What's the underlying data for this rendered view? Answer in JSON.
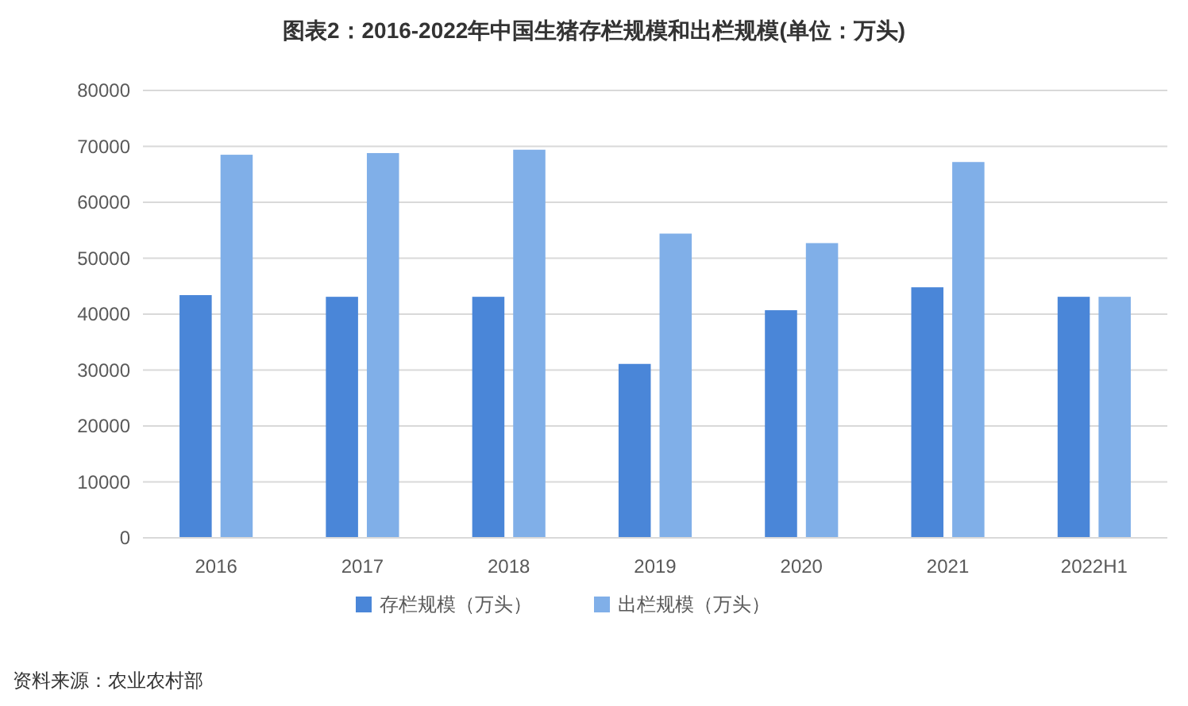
{
  "chart_data": {
    "type": "bar",
    "title": "图表2：2016-2022年中国生猪存栏规模和出栏规模(单位：万头)",
    "categories": [
      "2016",
      "2017",
      "2018",
      "2019",
      "2020",
      "2021",
      "2022H1"
    ],
    "series": [
      {
        "name": "存栏规模（万头）",
        "color": "#4a86d8",
        "values": [
          43400,
          43100,
          43100,
          31100,
          40700,
          44800,
          43100
        ]
      },
      {
        "name": "出栏规模（万头）",
        "color": "#80afe8",
        "values": [
          68500,
          68800,
          69400,
          54400,
          52700,
          67200,
          43100
        ]
      }
    ],
    "ylim": [
      0,
      80000
    ],
    "yticks": [
      0,
      10000,
      20000,
      30000,
      40000,
      50000,
      60000,
      70000,
      80000
    ],
    "grid": "y",
    "legend": "bottom",
    "annotations": [
      "资料来源：农业农村部"
    ]
  }
}
